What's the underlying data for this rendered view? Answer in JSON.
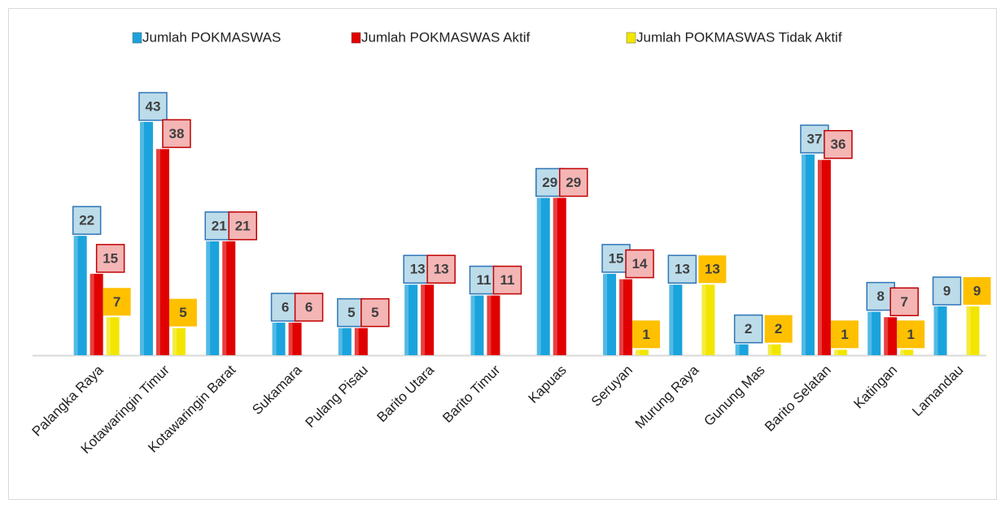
{
  "chart_data": {
    "type": "bar",
    "categories": [
      "Palangka Raya",
      "Kotawaringin Timur",
      "Kotawaringin Barat",
      "Sukamara",
      "Pulang Pisau",
      "Barito Utara",
      "Barito Timur",
      "Kapuas",
      "Seruyan",
      "Murung Raya",
      "Gunung Mas",
      "Barito Selatan",
      "Katingan",
      "Lamandau"
    ],
    "series": [
      {
        "name": "Jumlah POKMASWAS",
        "color": "#1aa3dc",
        "values": [
          22,
          43,
          21,
          6,
          5,
          13,
          11,
          29,
          15,
          13,
          2,
          37,
          8,
          9
        ]
      },
      {
        "name": "Jumlah POKMASWAS Aktif",
        "color": "#e00000",
        "values": [
          15,
          38,
          21,
          6,
          5,
          13,
          11,
          29,
          14,
          null,
          null,
          36,
          7,
          null
        ]
      },
      {
        "name": "Jumlah POKMASWAS Tidak Aktif",
        "color": "#f2e600",
        "values": [
          7,
          5,
          null,
          null,
          null,
          null,
          null,
          null,
          1,
          13,
          2,
          1,
          1,
          9
        ]
      }
    ],
    "legend": "top"
  }
}
